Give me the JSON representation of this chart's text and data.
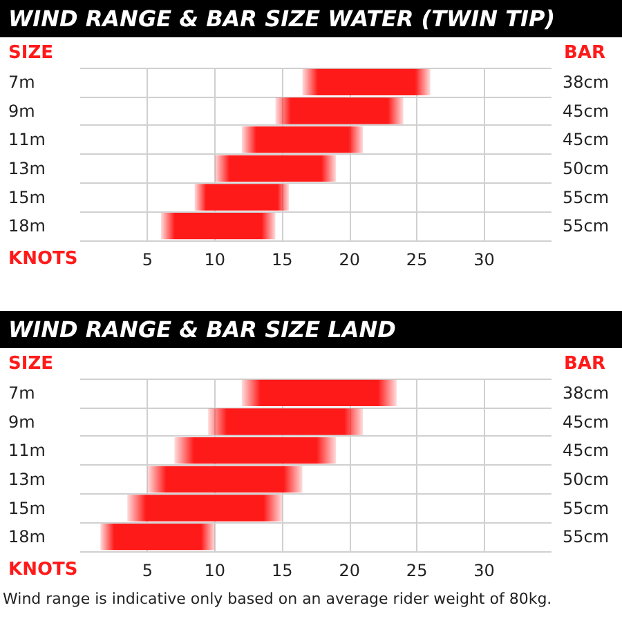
{
  "chart_data": [
    {
      "type": "bar",
      "orientation": "horizontal",
      "title": "WIND RANGE & BAR SIZE WATER (TWIN TIP)",
      "ylabel": "SIZE",
      "y2label": "BAR",
      "xlabel": "KNOTS",
      "categories": [
        "7m",
        "9m",
        "11m",
        "13m",
        "15m",
        "18m"
      ],
      "y2_categories": [
        "38cm",
        "45cm",
        "45cm",
        "50cm",
        "55cm",
        "55cm"
      ],
      "base": [
        16.5,
        14.5,
        12,
        10,
        8.5,
        6
      ],
      "values": [
        9.5,
        9.5,
        9,
        9,
        7,
        8.5
      ],
      "color": "#ff1a1a",
      "xlim": [
        0,
        35
      ],
      "xticks": [
        5,
        10,
        15,
        20,
        25,
        30
      ],
      "grid": true
    },
    {
      "type": "bar",
      "orientation": "horizontal",
      "title": "WIND RANGE & BAR SIZE LAND",
      "ylabel": "SIZE",
      "y2label": "BAR",
      "xlabel": "KNOTS",
      "categories": [
        "7m",
        "9m",
        "11m",
        "13m",
        "15m",
        "18m"
      ],
      "y2_categories": [
        "38cm",
        "45cm",
        "45cm",
        "50cm",
        "55cm",
        "55cm"
      ],
      "base": [
        12,
        9.5,
        7,
        5,
        3.5,
        1.5
      ],
      "values": [
        11.5,
        11.5,
        12,
        11.5,
        11.5,
        8.5
      ],
      "color": "#ff1a1a",
      "xlim": [
        0,
        35
      ],
      "xticks": [
        5,
        10,
        15,
        20,
        25,
        30
      ],
      "grid": true,
      "annotations": [
        "Wind range is indicative only based on an average rider weight of 80kg."
      ]
    }
  ]
}
